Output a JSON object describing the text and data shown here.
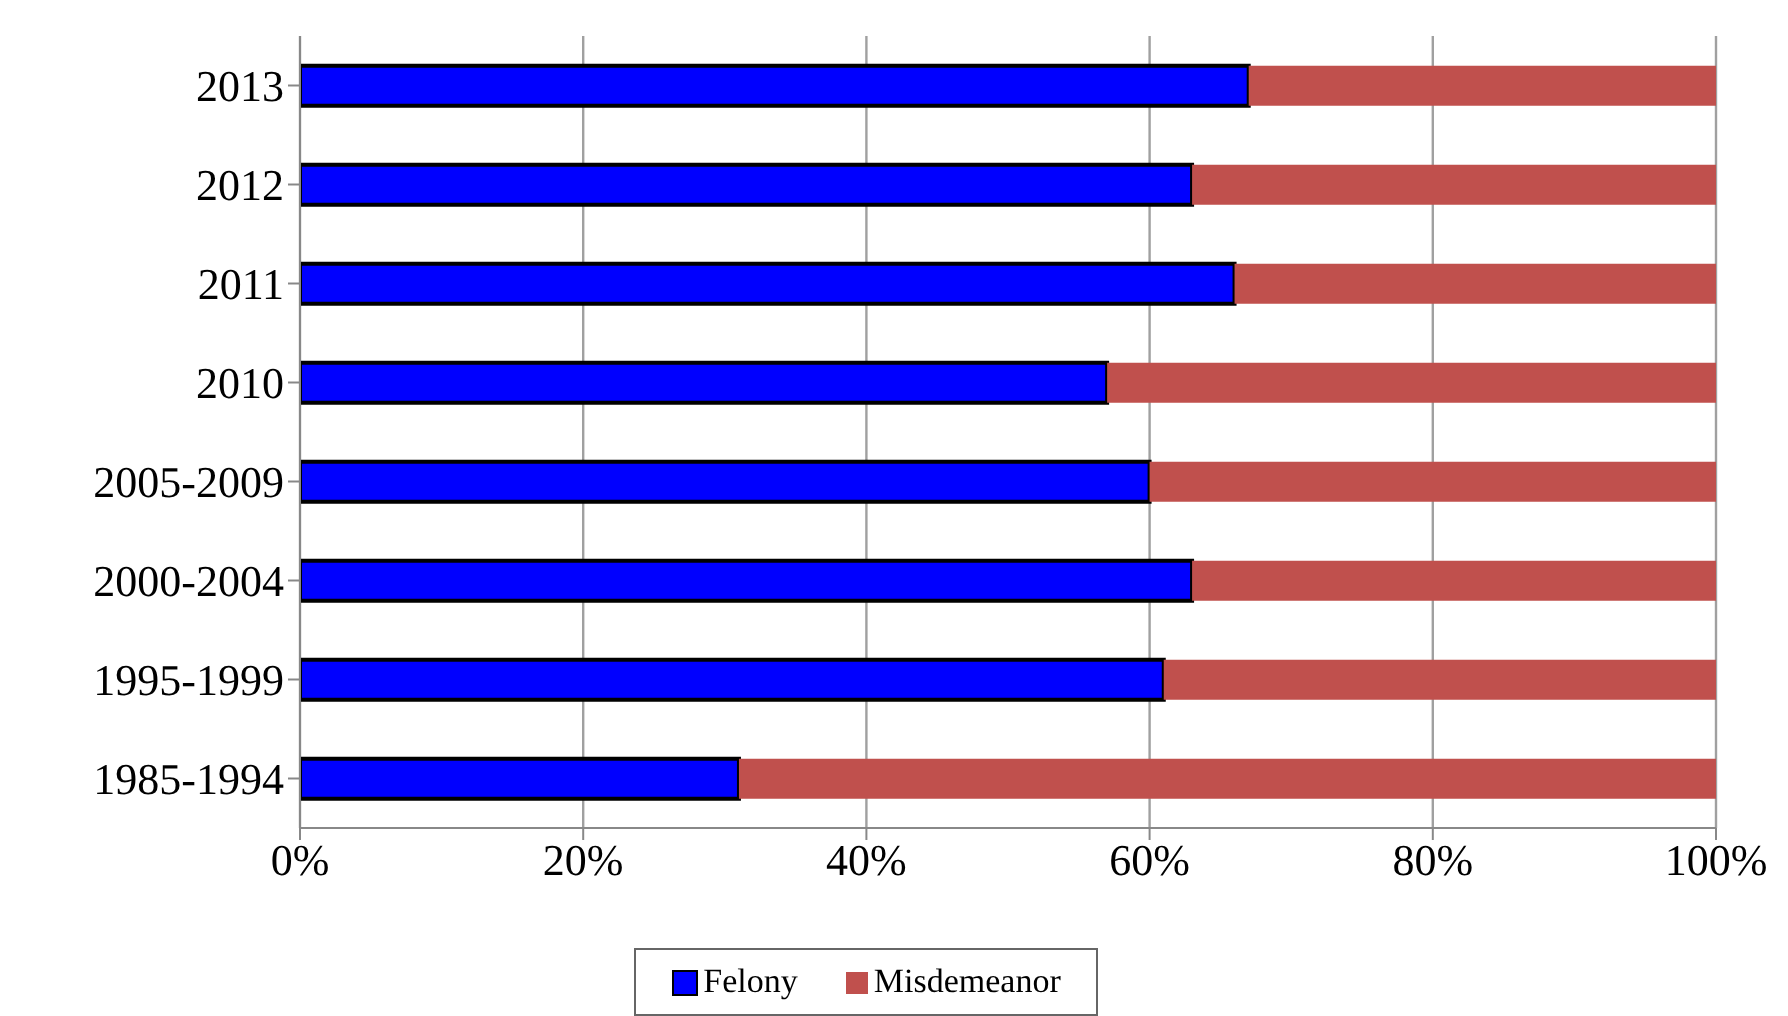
{
  "chart_data": {
    "type": "bar",
    "orientation": "horizontal",
    "stacked": true,
    "categories": [
      "2013",
      "2012",
      "2011",
      "2010",
      "2005-2009",
      "2000-2004",
      "1995-1999",
      "1985-1994"
    ],
    "series": [
      {
        "name": "Felony",
        "color": "#0000ff",
        "values": [
          67,
          63,
          66,
          57,
          60,
          63,
          61,
          31
        ]
      },
      {
        "name": "Misdemeanor",
        "color": "#c0504d",
        "values": [
          33,
          37,
          34,
          43,
          40,
          37,
          39,
          69
        ]
      }
    ],
    "xlim": [
      0,
      100
    ],
    "xticks": [
      {
        "value": 0,
        "label": "0%"
      },
      {
        "value": 20,
        "label": "20%"
      },
      {
        "value": 40,
        "label": "40%"
      },
      {
        "value": 60,
        "label": "60%"
      },
      {
        "value": 80,
        "label": "80%"
      },
      {
        "value": 100,
        "label": "100%"
      }
    ],
    "grid": "x",
    "legend": "bottom"
  }
}
